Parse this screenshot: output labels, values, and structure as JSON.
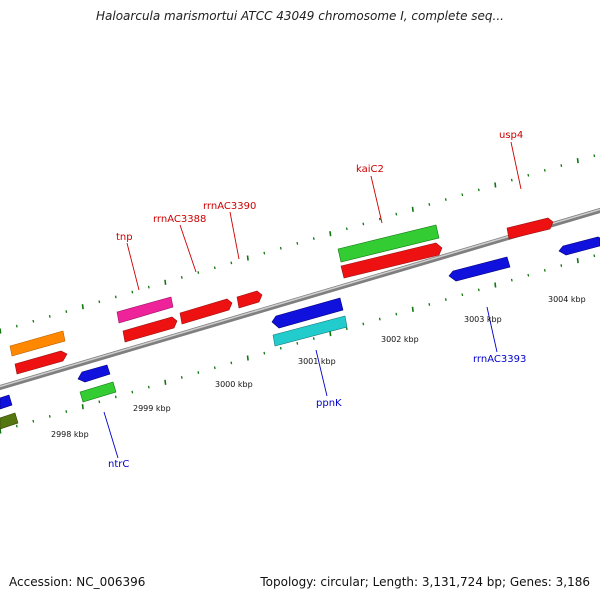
{
  "title": "Haloarcula marismortui ATCC 43049 chromosome I, complete seq...",
  "footer": {
    "accession": "Accession: NC_006396",
    "topology": "Topology: circular; Length: 3,131,724 bp; Genes: 3,186"
  },
  "scale_labels": [
    {
      "text": "2998 kbp",
      "bp": 2998000
    },
    {
      "text": "2999 kbp",
      "bp": 2999000
    },
    {
      "text": "3000 kbp",
      "bp": 3000000
    },
    {
      "text": "3001 kbp",
      "bp": 3001000
    },
    {
      "text": "3002 kbp",
      "bp": 3002000
    },
    {
      "text": "3003 kbp",
      "bp": 3003000
    },
    {
      "text": "3004 kbp",
      "bp": 3004000
    }
  ],
  "gene_labels": [
    {
      "text": "tnp",
      "strand": "forward",
      "color": "#cc0000"
    },
    {
      "text": "rrnAC3388",
      "strand": "forward",
      "color": "#cc0000"
    },
    {
      "text": "rrnAC3390",
      "strand": "forward",
      "color": "#cc0000"
    },
    {
      "text": "kaiC2",
      "strand": "forward",
      "color": "#cc0000"
    },
    {
      "text": "usp4",
      "strand": "forward",
      "color": "#cc0000"
    },
    {
      "text": "ntrC",
      "strand": "reverse",
      "color": "#0000cc"
    },
    {
      "text": "ppnK",
      "strand": "reverse",
      "color": "#0000cc"
    },
    {
      "text": "rrnAC3393",
      "strand": "reverse",
      "color": "#0000cc"
    }
  ],
  "colors": {
    "backbone": "#888888",
    "red": "#ee1111",
    "green": "#33cc33",
    "blue": "#1111dd",
    "magenta": "#ee2299",
    "orange": "#ff8800",
    "cyan": "#22cccc",
    "olive": "#557711",
    "tick": "#117711",
    "forward_label": "#cc0000",
    "reverse_label": "#0000cc"
  }
}
